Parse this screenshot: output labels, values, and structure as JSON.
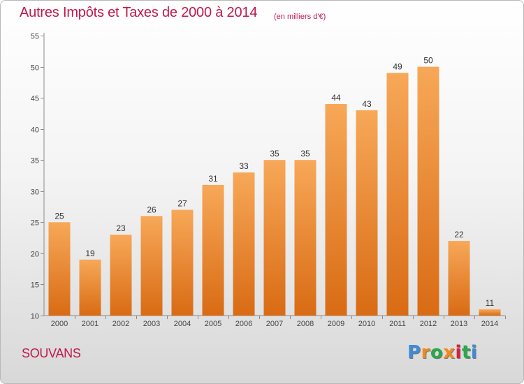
{
  "header": {
    "title": "Autres Impôts et Taxes de 2000 à 2014",
    "unit": "(en milliers d'€)"
  },
  "footer": {
    "place": "SOUVANS",
    "logo": "Proxiti"
  },
  "colors": {
    "title": "#c0184b",
    "bar_top": "#f7a858",
    "bar_bottom": "#d96b14",
    "logo": [
      "#3e8bd6",
      "#f08a1a",
      "#2aa84a",
      "#f08a1a",
      "#d81f3c",
      "#2aa84a",
      "#3e8bd6"
    ]
  },
  "chart_data": {
    "type": "bar",
    "categories": [
      "2000",
      "2001",
      "2002",
      "2003",
      "2004",
      "2005",
      "2006",
      "2007",
      "2008",
      "2009",
      "2010",
      "2011",
      "2012",
      "2013",
      "2014"
    ],
    "values": [
      25,
      19,
      23,
      26,
      27,
      31,
      33,
      35,
      35,
      44,
      43,
      49,
      50,
      22,
      11
    ],
    "ylim": [
      10,
      55
    ],
    "yticks": [
      10,
      15,
      20,
      25,
      30,
      35,
      40,
      45,
      50,
      55
    ],
    "grid": false
  }
}
